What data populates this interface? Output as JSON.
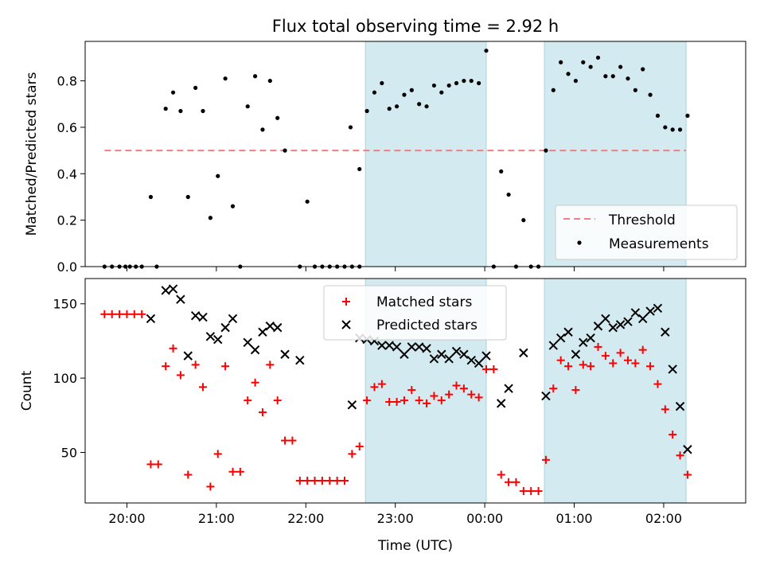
{
  "chart_data": [
    {
      "type": "scatter",
      "title": "Flux total observing time = 2.92 h",
      "xlabel": "",
      "ylabel": "Matched/Predicted stars",
      "xlim": [
        "19:32",
        "02:55"
      ],
      "ylim": [
        0,
        0.97
      ],
      "xticks": [
        "20:00",
        "21:00",
        "22:00",
        "23:00",
        "00:00",
        "01:00",
        "02:00"
      ],
      "yticks": [
        "0.0",
        "0.2",
        "0.4",
        "0.6",
        "0.8"
      ],
      "shaded_intervals": [
        [
          "22:40",
          "00:01"
        ],
        [
          "00:40",
          "02:15"
        ]
      ],
      "threshold": {
        "name": "Threshold",
        "value": 0.5,
        "x_range": [
          "19:45",
          "02:15"
        ],
        "color": "#f08080",
        "style": "dashed"
      },
      "series": [
        {
          "name": "Measurements",
          "color": "#000000",
          "marker": "dot",
          "points": [
            [
              "19:45",
              0.0
            ],
            [
              "19:50",
              0.0
            ],
            [
              "19:55",
              0.0
            ],
            [
              "19:59",
              0.0
            ],
            [
              "20:02",
              0.0
            ],
            [
              "20:06",
              0.0
            ],
            [
              "20:10",
              0.0
            ],
            [
              "20:16",
              0.3
            ],
            [
              "20:20",
              0.0
            ],
            [
              "20:26",
              0.68
            ],
            [
              "20:31",
              0.75
            ],
            [
              "20:36",
              0.67
            ],
            [
              "20:41",
              0.3
            ],
            [
              "20:46",
              0.77
            ],
            [
              "20:51",
              0.67
            ],
            [
              "20:56",
              0.21
            ],
            [
              "21:01",
              0.39
            ],
            [
              "21:06",
              0.81
            ],
            [
              "21:11",
              0.26
            ],
            [
              "21:16",
              0.0
            ],
            [
              "21:21",
              0.69
            ],
            [
              "21:26",
              0.82
            ],
            [
              "21:31",
              0.59
            ],
            [
              "21:36",
              0.8
            ],
            [
              "21:41",
              0.64
            ],
            [
              "21:46",
              0.5
            ],
            [
              "21:56",
              0.0
            ],
            [
              "22:01",
              0.28
            ],
            [
              "22:06",
              0.0
            ],
            [
              "22:11",
              0.0
            ],
            [
              "22:16",
              0.0
            ],
            [
              "22:21",
              0.0
            ],
            [
              "22:26",
              0.0
            ],
            [
              "22:31",
              0.0
            ],
            [
              "22:36",
              0.0
            ],
            [
              "22:30",
              0.6
            ],
            [
              "22:36",
              0.42
            ],
            [
              "22:41",
              0.67
            ],
            [
              "22:46",
              0.75
            ],
            [
              "22:51",
              0.79
            ],
            [
              "22:56",
              0.68
            ],
            [
              "23:01",
              0.69
            ],
            [
              "23:06",
              0.74
            ],
            [
              "23:11",
              0.76
            ],
            [
              "23:16",
              0.7
            ],
            [
              "23:21",
              0.69
            ],
            [
              "23:26",
              0.78
            ],
            [
              "23:31",
              0.75
            ],
            [
              "23:36",
              0.78
            ],
            [
              "23:41",
              0.79
            ],
            [
              "23:46",
              0.8
            ],
            [
              "23:51",
              0.8
            ],
            [
              "23:56",
              0.79
            ],
            [
              "00:01",
              0.93
            ],
            [
              "00:06",
              0.0
            ],
            [
              "00:11",
              0.41
            ],
            [
              "00:16",
              0.31
            ],
            [
              "00:21",
              0.0
            ],
            [
              "00:26",
              0.2
            ],
            [
              "00:31",
              0.0
            ],
            [
              "00:36",
              0.0
            ],
            [
              "00:41",
              0.5
            ],
            [
              "00:46",
              0.76
            ],
            [
              "00:51",
              0.88
            ],
            [
              "00:56",
              0.83
            ],
            [
              "01:01",
              0.8
            ],
            [
              "01:06",
              0.88
            ],
            [
              "01:11",
              0.86
            ],
            [
              "01:16",
              0.9
            ],
            [
              "01:21",
              0.82
            ],
            [
              "01:26",
              0.82
            ],
            [
              "01:31",
              0.86
            ],
            [
              "01:36",
              0.81
            ],
            [
              "01:41",
              0.76
            ],
            [
              "01:46",
              0.85
            ],
            [
              "01:51",
              0.74
            ],
            [
              "01:56",
              0.65
            ],
            [
              "02:01",
              0.6
            ],
            [
              "02:06",
              0.59
            ],
            [
              "02:11",
              0.59
            ],
            [
              "02:16",
              0.65
            ]
          ]
        }
      ],
      "legend": {
        "position": "lower-right",
        "entries": [
          "Threshold",
          "Measurements"
        ]
      }
    },
    {
      "type": "scatter",
      "title": "",
      "xlabel": "Time (UTC)",
      "ylabel": "Count",
      "xlim": [
        "19:32",
        "02:55"
      ],
      "ylim": [
        16,
        167
      ],
      "xticks": [
        "20:00",
        "21:00",
        "22:00",
        "23:00",
        "00:00",
        "01:00",
        "02:00"
      ],
      "yticks": [
        "50",
        "100",
        "150"
      ],
      "shaded_intervals": [
        [
          "22:40",
          "00:01"
        ],
        [
          "00:40",
          "02:15"
        ]
      ],
      "series": [
        {
          "name": "Matched stars",
          "color": "#ff0000",
          "marker": "plus",
          "points": [
            [
              "19:45",
              143
            ],
            [
              "19:50",
              143
            ],
            [
              "19:55",
              143
            ],
            [
              "20:00",
              143
            ],
            [
              "20:05",
              143
            ],
            [
              "20:10",
              143
            ],
            [
              "20:16",
              42
            ],
            [
              "20:21",
              42
            ],
            [
              "20:26",
              108
            ],
            [
              "20:31",
              120
            ],
            [
              "20:36",
              102
            ],
            [
              "20:41",
              35
            ],
            [
              "20:46",
              109
            ],
            [
              "20:51",
              94
            ],
            [
              "20:56",
              27
            ],
            [
              "21:01",
              49
            ],
            [
              "21:06",
              108
            ],
            [
              "21:11",
              37
            ],
            [
              "21:16",
              37
            ],
            [
              "21:21",
              85
            ],
            [
              "21:26",
              97
            ],
            [
              "21:31",
              77
            ],
            [
              "21:36",
              109
            ],
            [
              "21:41",
              85
            ],
            [
              "21:46",
              58
            ],
            [
              "21:51",
              58
            ],
            [
              "21:56",
              31
            ],
            [
              "22:01",
              31
            ],
            [
              "22:06",
              31
            ],
            [
              "22:11",
              31
            ],
            [
              "22:16",
              31
            ],
            [
              "22:21",
              31
            ],
            [
              "22:26",
              31
            ],
            [
              "22:31",
              49
            ],
            [
              "22:36",
              54
            ],
            [
              "22:41",
              85
            ],
            [
              "22:46",
              94
            ],
            [
              "22:51",
              96
            ],
            [
              "22:56",
              84
            ],
            [
              "23:01",
              84
            ],
            [
              "23:06",
              85
            ],
            [
              "23:11",
              92
            ],
            [
              "23:16",
              85
            ],
            [
              "23:21",
              83
            ],
            [
              "23:26",
              88
            ],
            [
              "23:31",
              85
            ],
            [
              "23:36",
              89
            ],
            [
              "23:41",
              95
            ],
            [
              "23:46",
              93
            ],
            [
              "23:51",
              89
            ],
            [
              "23:56",
              87
            ],
            [
              "00:01",
              106
            ],
            [
              "00:06",
              106
            ],
            [
              "00:11",
              35
            ],
            [
              "00:16",
              30
            ],
            [
              "00:21",
              30
            ],
            [
              "00:26",
              24
            ],
            [
              "00:31",
              24
            ],
            [
              "00:36",
              24
            ],
            [
              "00:41",
              45
            ],
            [
              "00:46",
              93
            ],
            [
              "00:51",
              112
            ],
            [
              "00:56",
              108
            ],
            [
              "01:01",
              92
            ],
            [
              "01:06",
              109
            ],
            [
              "01:11",
              108
            ],
            [
              "01:16",
              121
            ],
            [
              "01:21",
              115
            ],
            [
              "01:26",
              110
            ],
            [
              "01:31",
              117
            ],
            [
              "01:36",
              112
            ],
            [
              "01:41",
              110
            ],
            [
              "01:46",
              119
            ],
            [
              "01:51",
              108
            ],
            [
              "01:56",
              96
            ],
            [
              "02:01",
              79
            ],
            [
              "02:06",
              62
            ],
            [
              "02:11",
              48
            ],
            [
              "02:16",
              35
            ]
          ]
        },
        {
          "name": "Predicted stars",
          "color": "#000000",
          "marker": "x",
          "points": [
            [
              "20:16",
              140
            ],
            [
              "20:26",
              159
            ],
            [
              "20:31",
              160
            ],
            [
              "20:36",
              153
            ],
            [
              "20:41",
              115
            ],
            [
              "20:46",
              142
            ],
            [
              "20:51",
              141
            ],
            [
              "20:56",
              128
            ],
            [
              "21:01",
              126
            ],
            [
              "21:06",
              134
            ],
            [
              "21:11",
              140
            ],
            [
              "21:21",
              124
            ],
            [
              "21:26",
              119
            ],
            [
              "21:31",
              131
            ],
            [
              "21:36",
              135
            ],
            [
              "21:41",
              134
            ],
            [
              "21:46",
              116
            ],
            [
              "21:56",
              112
            ],
            [
              "22:31",
              82
            ],
            [
              "22:36",
              127
            ],
            [
              "22:41",
              126
            ],
            [
              "22:46",
              125
            ],
            [
              "22:51",
              122
            ],
            [
              "22:56",
              122
            ],
            [
              "23:01",
              121
            ],
            [
              "23:06",
              116
            ],
            [
              "23:11",
              121
            ],
            [
              "23:16",
              121
            ],
            [
              "23:21",
              120
            ],
            [
              "23:26",
              113
            ],
            [
              "23:31",
              116
            ],
            [
              "23:36",
              113
            ],
            [
              "23:41",
              118
            ],
            [
              "23:46",
              116
            ],
            [
              "23:51",
              112
            ],
            [
              "23:56",
              110
            ],
            [
              "00:01",
              115
            ],
            [
              "00:11",
              83
            ],
            [
              "00:16",
              93
            ],
            [
              "00:26",
              117
            ],
            [
              "00:41",
              88
            ],
            [
              "00:46",
              122
            ],
            [
              "00:51",
              127
            ],
            [
              "00:56",
              131
            ],
            [
              "01:01",
              116
            ],
            [
              "01:06",
              124
            ],
            [
              "01:11",
              127
            ],
            [
              "01:16",
              135
            ],
            [
              "01:21",
              140
            ],
            [
              "01:26",
              134
            ],
            [
              "01:31",
              136
            ],
            [
              "01:36",
              138
            ],
            [
              "01:41",
              144
            ],
            [
              "01:46",
              140
            ],
            [
              "01:51",
              145
            ],
            [
              "01:56",
              147
            ],
            [
              "02:01",
              131
            ],
            [
              "02:06",
              106
            ],
            [
              "02:11",
              81
            ],
            [
              "02:16",
              52
            ]
          ]
        }
      ],
      "legend": {
        "position": "top-center",
        "entries": [
          "Matched stars",
          "Predicted stars"
        ]
      }
    }
  ],
  "colors": {
    "shade": "#d3eaf0",
    "threshold": "#f08080",
    "matched": "#ff0000",
    "predicted": "#000000"
  }
}
